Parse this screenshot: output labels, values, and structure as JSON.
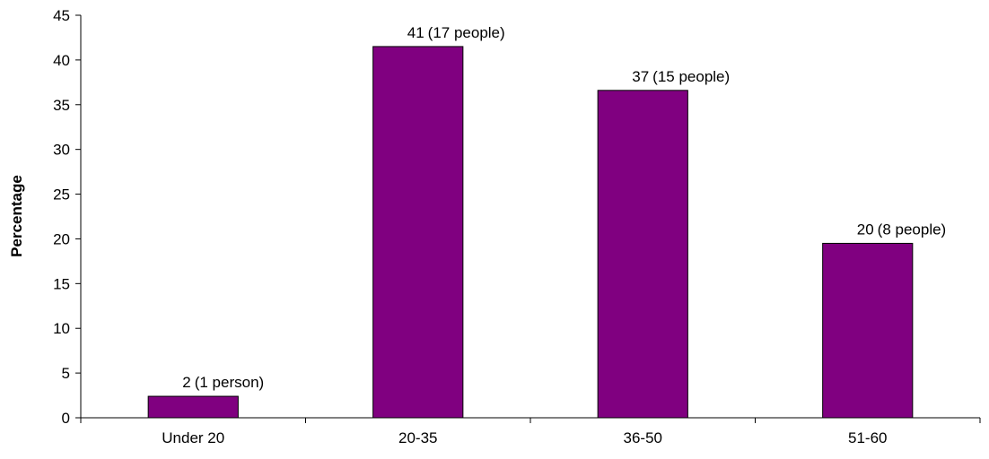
{
  "chart_data": {
    "type": "bar",
    "title": "",
    "xlabel": "",
    "ylabel": "Percentage",
    "categories": [
      "Under 20",
      "20-35",
      "36-50",
      "51-60"
    ],
    "values": [
      2.4,
      41.5,
      36.6,
      19.5
    ],
    "data_labels": [
      {
        "value": "2",
        "note": "(1 person)"
      },
      {
        "value": "41",
        "note": "(17 people)"
      },
      {
        "value": "37",
        "note": "(15 people)"
      },
      {
        "value": "20",
        "note": "(8 people)"
      }
    ],
    "ylim": [
      0,
      45
    ],
    "yticks": [
      0,
      5,
      10,
      15,
      20,
      25,
      30,
      35,
      40,
      45
    ],
    "bar_color": "#800080",
    "grid": false,
    "legend": "none"
  }
}
